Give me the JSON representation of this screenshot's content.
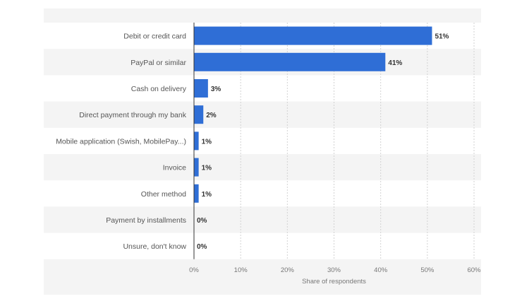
{
  "chart_data": {
    "type": "bar",
    "orientation": "horizontal",
    "categories": [
      "Debit or credit card",
      "PayPal or similar",
      "Cash on delivery",
      "Direct payment through my bank",
      "Mobile application (Swish, MobilePay...)",
      "Invoice",
      "Other method",
      "Payment by installments",
      "Unsure, don't know"
    ],
    "values": [
      51,
      41,
      3,
      2,
      1,
      1,
      1,
      0,
      0
    ],
    "value_labels": [
      "51%",
      "41%",
      "3%",
      "2%",
      "1%",
      "1%",
      "1%",
      "0%",
      "0%"
    ],
    "xlabel": "Share of respondents",
    "xlim": [
      0,
      60
    ],
    "ticks": [
      0,
      10,
      20,
      30,
      40,
      50,
      60
    ],
    "tick_labels": [
      "0%",
      "10%",
      "20%",
      "30%",
      "40%",
      "50%",
      "60%"
    ],
    "grid": true,
    "bar_color": "#2f6ed6"
  }
}
